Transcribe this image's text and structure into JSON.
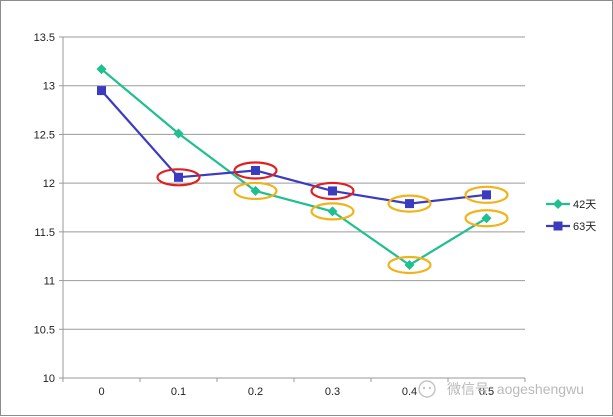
{
  "chart_data": {
    "type": "line",
    "x": [
      0,
      0.1,
      0.2,
      0.3,
      0.4,
      0.5
    ],
    "x_tick_labels": [
      "0",
      "0.1",
      "0.2",
      "0.3",
      "0.4",
      "0.5"
    ],
    "y_ticks": [
      10,
      10.5,
      11,
      11.5,
      12,
      12.5,
      13,
      13.5
    ],
    "y_tick_labels": [
      "10",
      "10.5",
      "11",
      "11.5",
      "12",
      "12.5",
      "13",
      "13.5"
    ],
    "ylim": [
      10,
      13.5
    ],
    "grid": "horizontal",
    "legend_position": "right",
    "series": [
      {
        "name": "42天",
        "color": "#1fbf8f",
        "marker": "diamond",
        "values": [
          13.17,
          12.51,
          11.92,
          11.71,
          11.16,
          11.64
        ]
      },
      {
        "name": "63天",
        "color": "#3b3bbf",
        "marker": "square",
        "values": [
          12.95,
          12.06,
          12.13,
          11.92,
          11.79,
          11.88
        ]
      }
    ],
    "annotations": {
      "red_circles": [
        {
          "series": 1,
          "index": 1
        },
        {
          "series": 1,
          "index": 2
        },
        {
          "series": 1,
          "index": 3
        }
      ],
      "orange_circles": [
        {
          "series": 0,
          "index": 2
        },
        {
          "series": 0,
          "index": 3
        },
        {
          "series": 0,
          "index": 4
        },
        {
          "series": 1,
          "index": 4
        },
        {
          "series": 1,
          "index": 5
        },
        {
          "series": 0,
          "index": 5
        }
      ],
      "red_color": "#e02020",
      "orange_color": "#f2b21a"
    }
  },
  "watermark": {
    "text": "微信号: aogeshengwu",
    "icon": "wechat-icon"
  }
}
